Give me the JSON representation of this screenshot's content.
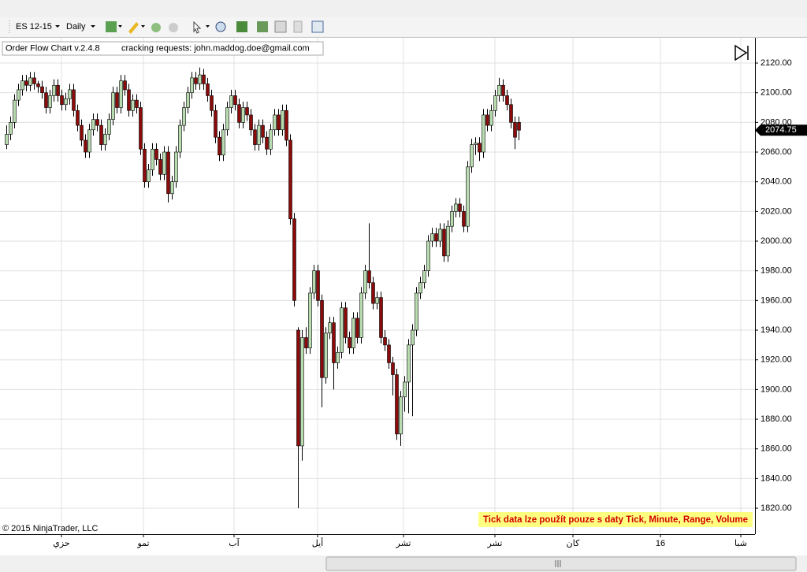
{
  "toolbar": {
    "instrument": "ES 12-15",
    "interval": "Daily"
  },
  "chart_data": {
    "type": "candlestick",
    "annotations": {
      "info": "Order Flow Chart v.2.4.8",
      "request": "cracking requests: john.maddog.doe@gmail.com",
      "copyright": "© 2015 NinjaTrader, LLC",
      "warning": "Tick data lze použít pouze s daty Tick, Minute, Range, Volume"
    },
    "up_color": "#b8dcb0",
    "down_color": "#8b0a0a",
    "grid": true,
    "ylim": [
      1802.5,
      2137
    ],
    "yticks": [
      {
        "value": 1820,
        "label": "1820.00"
      },
      {
        "value": 1840,
        "label": "1840.00"
      },
      {
        "value": 1860,
        "label": "1860.00"
      },
      {
        "value": 1880,
        "label": "1880.00"
      },
      {
        "value": 1900,
        "label": "1900.00"
      },
      {
        "value": 1920,
        "label": "1920.00"
      },
      {
        "value": 1940,
        "label": "1940.00"
      },
      {
        "value": 1960,
        "label": "1960.00"
      },
      {
        "value": 1980,
        "label": "1980.00"
      },
      {
        "value": 2000,
        "label": "2000.00"
      },
      {
        "value": 2020,
        "label": "2020.00"
      },
      {
        "value": 2040,
        "label": "2040.00"
      },
      {
        "value": 2060,
        "label": "2060.00"
      },
      {
        "value": 2080,
        "label": "2080.00"
      },
      {
        "value": 2100,
        "label": "2100.00"
      },
      {
        "value": 2120,
        "label": "2120.00"
      }
    ],
    "xlim": [
      -1.6,
      190
    ],
    "xticks": [
      {
        "value": 14,
        "label": "حزي"
      },
      {
        "value": 34.8,
        "label": "تمو"
      },
      {
        "value": 57.8,
        "label": "آب"
      },
      {
        "value": 79,
        "label": "أيل"
      },
      {
        "value": 100.8,
        "label": "تشر"
      },
      {
        "value": 124,
        "label": "تشر"
      },
      {
        "value": 143.8,
        "label": "كان"
      },
      {
        "value": 166,
        "label": "16"
      },
      {
        "value": 186.4,
        "label": "شبا"
      }
    ],
    "candles": [
      [
        2065,
        2078,
        2062,
        2072
      ],
      [
        2072,
        2084,
        2068,
        2080
      ],
      [
        2080,
        2099,
        2076,
        2095
      ],
      [
        2095,
        2106,
        2091,
        2102
      ],
      [
        2102,
        2112,
        2098,
        2108
      ],
      [
        2108,
        2112,
        2101,
        2105
      ],
      [
        2105,
        2114,
        2101,
        2110
      ],
      [
        2110,
        2114,
        2102,
        2106
      ],
      [
        2106,
        2108,
        2100,
        2104
      ],
      [
        2104,
        2108,
        2096,
        2100
      ],
      [
        2100,
        2104,
        2086,
        2090
      ],
      [
        2090,
        2102,
        2086,
        2098
      ],
      [
        2098,
        2109,
        2094,
        2105
      ],
      [
        2105,
        2109,
        2094,
        2098
      ],
      [
        2098,
        2102,
        2088,
        2092
      ],
      [
        2092,
        2100,
        2088,
        2096
      ],
      [
        2096,
        2106,
        2092,
        2102
      ],
      [
        2102,
        2106,
        2084,
        2088
      ],
      [
        2088,
        2092,
        2074,
        2078
      ],
      [
        2078,
        2082,
        2064,
        2068
      ],
      [
        2068,
        2072,
        2056,
        2060
      ],
      [
        2060,
        2079,
        2056,
        2075
      ],
      [
        2075,
        2086,
        2071,
        2082
      ],
      [
        2082,
        2086,
        2074,
        2078
      ],
      [
        2078,
        2082,
        2061,
        2065
      ],
      [
        2065,
        2076,
        2061,
        2072
      ],
      [
        2072,
        2086,
        2068,
        2082
      ],
      [
        2082,
        2104,
        2078,
        2100
      ],
      [
        2100,
        2104,
        2086,
        2090
      ],
      [
        2090,
        2112,
        2086,
        2108
      ],
      [
        2108,
        2112,
        2098,
        2102
      ],
      [
        2102,
        2106,
        2084,
        2088
      ],
      [
        2088,
        2099,
        2084,
        2095
      ],
      [
        2095,
        2099,
        2086,
        2090
      ],
      [
        2090,
        2094,
        2058,
        2062
      ],
      [
        2062,
        2066,
        2036,
        2040
      ],
      [
        2040,
        2052,
        2036,
        2048
      ],
      [
        2048,
        2066,
        2044,
        2062
      ],
      [
        2062,
        2066,
        2051,
        2055
      ],
      [
        2055,
        2059,
        2041,
        2045
      ],
      [
        2045,
        2064,
        2041,
        2060
      ],
      [
        2060,
        2064,
        2026,
        2032
      ],
      [
        2032,
        2044,
        2028,
        2040
      ],
      [
        2040,
        2064,
        2036,
        2060
      ],
      [
        2060,
        2082,
        2056,
        2078
      ],
      [
        2078,
        2094,
        2074,
        2090
      ],
      [
        2090,
        2104,
        2086,
        2100
      ],
      [
        2100,
        2114,
        2096,
        2110
      ],
      [
        2110,
        2114,
        2102,
        2106
      ],
      [
        2106,
        2117,
        2102,
        2112
      ],
      [
        2112,
        2116,
        2102,
        2106
      ],
      [
        2106,
        2110,
        2094,
        2098
      ],
      [
        2098,
        2102,
        2084,
        2088
      ],
      [
        2088,
        2092,
        2066,
        2070
      ],
      [
        2070,
        2074,
        2054,
        2058
      ],
      [
        2058,
        2079,
        2054,
        2075
      ],
      [
        2075,
        2094,
        2071,
        2090
      ],
      [
        2090,
        2102,
        2086,
        2098
      ],
      [
        2098,
        2102,
        2088,
        2092
      ],
      [
        2092,
        2096,
        2076,
        2080
      ],
      [
        2080,
        2094,
        2076,
        2090
      ],
      [
        2090,
        2094,
        2081,
        2085
      ],
      [
        2085,
        2089,
        2071,
        2075
      ],
      [
        2075,
        2079,
        2061,
        2065
      ],
      [
        2065,
        2082,
        2061,
        2078
      ],
      [
        2078,
        2082,
        2066,
        2070
      ],
      [
        2070,
        2074,
        2058,
        2062
      ],
      [
        2062,
        2079,
        2058,
        2075
      ],
      [
        2075,
        2089,
        2071,
        2085
      ],
      [
        2085,
        2089,
        2071,
        2075
      ],
      [
        2075,
        2092,
        2071,
        2088
      ],
      [
        2088,
        2092,
        2064,
        2068
      ],
      [
        2068,
        2072,
        2011,
        2015
      ],
      [
        2015,
        2019,
        1956,
        1960
      ],
      [
        1940,
        1942,
        1820,
        1862
      ],
      [
        1862,
        1940,
        1852,
        1935
      ],
      [
        1935,
        1942,
        1924,
        1928
      ],
      [
        1928,
        1969,
        1924,
        1965
      ],
      [
        1965,
        1984,
        1961,
        1980
      ],
      [
        1980,
        1984,
        1956,
        1960
      ],
      [
        1960,
        1964,
        1888,
        1908
      ],
      [
        1908,
        1942,
        1904,
        1938
      ],
      [
        1938,
        1949,
        1934,
        1945
      ],
      [
        1945,
        1949,
        1900,
        1918
      ],
      [
        1918,
        1929,
        1914,
        1925
      ],
      [
        1925,
        1959,
        1921,
        1955
      ],
      [
        1955,
        1959,
        1931,
        1935
      ],
      [
        1935,
        1939,
        1924,
        1928
      ],
      [
        1928,
        1952,
        1924,
        1948
      ],
      [
        1948,
        1952,
        1931,
        1935
      ],
      [
        1935,
        1969,
        1931,
        1965
      ],
      [
        1965,
        1984,
        1961,
        1980
      ],
      [
        1980,
        2012,
        1968,
        1972
      ],
      [
        1972,
        1976,
        1954,
        1958
      ],
      [
        1958,
        1966,
        1954,
        1962
      ],
      [
        1962,
        1966,
        1931,
        1935
      ],
      [
        1935,
        1940,
        1926,
        1930
      ],
      [
        1930,
        1934,
        1914,
        1918
      ],
      [
        1918,
        1922,
        1896,
        1910
      ],
      [
        1910,
        1914,
        1866,
        1870
      ],
      [
        1870,
        1899,
        1862,
        1895
      ],
      [
        1895,
        1909,
        1885,
        1905
      ],
      [
        1905,
        1934,
        1884,
        1930
      ],
      [
        1930,
        1944,
        1882,
        1940
      ],
      [
        1940,
        1969,
        1936,
        1965
      ],
      [
        1965,
        1976,
        1961,
        1972
      ],
      [
        1972,
        1984,
        1968,
        1980
      ],
      [
        1980,
        2004,
        1976,
        2000
      ],
      [
        2000,
        2009,
        1996,
        2005
      ],
      [
        2005,
        2009,
        1996,
        2000
      ],
      [
        2000,
        2012,
        1996,
        2008
      ],
      [
        2008,
        2012,
        1986,
        1990
      ],
      [
        1990,
        2014,
        1986,
        2010
      ],
      [
        2010,
        2024,
        2006,
        2020
      ],
      [
        2020,
        2029,
        2016,
        2025
      ],
      [
        2025,
        2029,
        2016,
        2020
      ],
      [
        2020,
        2024,
        2006,
        2010
      ],
      [
        2010,
        2054,
        2006,
        2050
      ],
      [
        2050,
        2069,
        2046,
        2065
      ],
      [
        2065,
        2070,
        2058,
        2066
      ],
      [
        2066,
        2070,
        2054,
        2060
      ],
      [
        2060,
        2089,
        2056,
        2085
      ],
      [
        2085,
        2089,
        2074,
        2078
      ],
      [
        2078,
        2092,
        2074,
        2088
      ],
      [
        2088,
        2102,
        2084,
        2098
      ],
      [
        2098,
        2110,
        2094,
        2105
      ],
      [
        2105,
        2109,
        2094,
        2098
      ],
      [
        2098,
        2102,
        2088,
        2092
      ],
      [
        2092,
        2096,
        2076,
        2080
      ],
      [
        2080,
        2084,
        2062,
        2070
      ],
      [
        2080,
        2084,
        2068,
        2074.75
      ]
    ]
  }
}
